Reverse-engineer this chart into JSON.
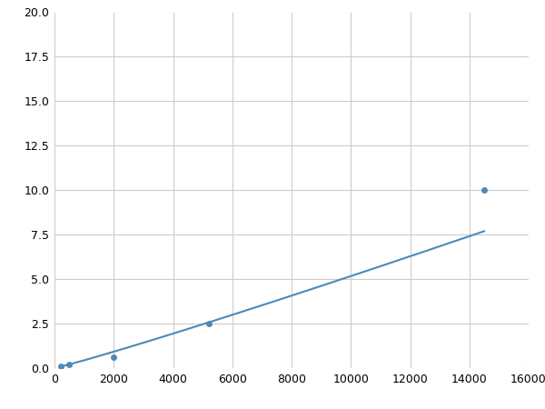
{
  "x": [
    200,
    500,
    2000,
    5200,
    14500
  ],
  "y": [
    0.1,
    0.2,
    0.6,
    2.5,
    10.0
  ],
  "line_color": "#4d8ab5",
  "marker_color": "#4d8ab5",
  "marker_size": 5,
  "line_width": 1.5,
  "xlim": [
    0,
    16000
  ],
  "ylim": [
    0,
    20.0
  ],
  "xticks": [
    0,
    2000,
    4000,
    6000,
    8000,
    10000,
    12000,
    14000,
    16000
  ],
  "yticks": [
    0.0,
    2.5,
    5.0,
    7.5,
    10.0,
    12.5,
    15.0,
    17.5,
    20.0
  ],
  "grid_color": "#cccccc",
  "background_color": "#ffffff",
  "fig_background": "#ffffff"
}
